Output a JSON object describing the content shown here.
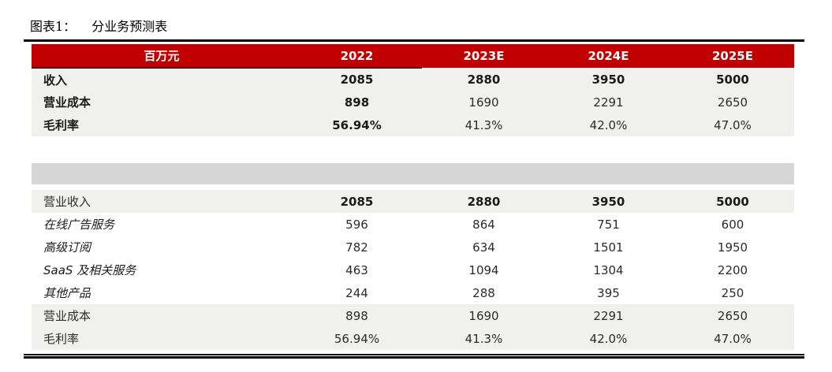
{
  "title": {
    "label": "图表1：",
    "name": "分业务预测表"
  },
  "table": {
    "unit_header": "百万元",
    "year_headers": [
      "2022",
      "2023E",
      "2024E",
      "2025E"
    ],
    "rows": [
      {
        "label": "收入",
        "values": [
          "2085",
          "2880",
          "3950",
          "5000"
        ],
        "label_style": "bold",
        "value_styles": [
          "bold",
          "bold",
          "bold",
          "bold"
        ],
        "bg": "light"
      },
      {
        "label": "营业成本",
        "values": [
          "898",
          "1690",
          "2291",
          "2650"
        ],
        "label_style": "bold",
        "value_styles": [
          "bold",
          "reg",
          "reg",
          "reg"
        ],
        "bg": "light"
      },
      {
        "label": "毛利率",
        "values": [
          "56.94%",
          "41.3%",
          "42.0%",
          "47.0%"
        ],
        "label_style": "bold",
        "value_styles": [
          "bold",
          "reg",
          "reg",
          "reg"
        ],
        "bg": "light"
      },
      {
        "type": "gap"
      },
      {
        "type": "band"
      },
      {
        "type": "gap-small"
      },
      {
        "label": "营业收入",
        "values": [
          "2085",
          "2880",
          "3950",
          "5000"
        ],
        "label_style": "reg",
        "value_styles": [
          "bold",
          "bold",
          "bold",
          "bold"
        ],
        "bg": "light"
      },
      {
        "label": "在线广告服务",
        "values": [
          "596",
          "864",
          "751",
          "600"
        ],
        "label_style": "italic",
        "value_styles": [
          "reg",
          "reg",
          "reg",
          "reg"
        ],
        "bg": "white"
      },
      {
        "label": "高级订阅",
        "values": [
          "782",
          "634",
          "1501",
          "1950"
        ],
        "label_style": "italic",
        "value_styles": [
          "reg",
          "reg",
          "reg",
          "reg"
        ],
        "bg": "white"
      },
      {
        "label": "SaaS 及相关服务",
        "values": [
          "463",
          "1094",
          "1304",
          "2200"
        ],
        "label_style": "italic",
        "value_styles": [
          "reg",
          "reg",
          "reg",
          "reg"
        ],
        "bg": "white"
      },
      {
        "label": "其他产品",
        "values": [
          "244",
          "288",
          "395",
          "250"
        ],
        "label_style": "italic",
        "value_styles": [
          "reg",
          "reg",
          "reg",
          "reg"
        ],
        "bg": "white"
      },
      {
        "label": "营业成本",
        "values": [
          "898",
          "1690",
          "2291",
          "2650"
        ],
        "label_style": "reg",
        "value_styles": [
          "reg",
          "reg",
          "reg",
          "reg"
        ],
        "bg": "light"
      },
      {
        "label": "毛利率",
        "values": [
          "56.94%",
          "41.3%",
          "42.0%",
          "47.0%"
        ],
        "label_style": "reg",
        "value_styles": [
          "reg",
          "reg",
          "reg",
          "reg"
        ],
        "bg": "light"
      }
    ]
  },
  "colors": {
    "header_bg": "#C00000",
    "header_text": "#FFFFFF",
    "row_light": "#F0F0EE",
    "separator_band": "#D6D6D6",
    "rule": "#000000"
  },
  "chart_data": {
    "type": "table",
    "title": "图表1： 分业务预测表",
    "unit": "百万元",
    "columns": [
      "百万元",
      "2022",
      "2023E",
      "2024E",
      "2025E"
    ],
    "rows": [
      [
        "收入",
        2085,
        2880,
        3950,
        5000
      ],
      [
        "营业成本",
        898,
        1690,
        2291,
        2650
      ],
      [
        "毛利率",
        "56.94%",
        "41.3%",
        "42.0%",
        "47.0%"
      ],
      [
        "营业收入",
        2085,
        2880,
        3950,
        5000
      ],
      [
        "在线广告服务",
        596,
        864,
        751,
        600
      ],
      [
        "高级订阅",
        782,
        634,
        1501,
        1950
      ],
      [
        "SaaS 及相关服务",
        463,
        1094,
        1304,
        2200
      ],
      [
        "其他产品",
        244,
        288,
        395,
        250
      ],
      [
        "营业成本",
        898,
        1690,
        2291,
        2650
      ],
      [
        "毛利率",
        "56.94%",
        "41.3%",
        "42.0%",
        "47.0%"
      ]
    ]
  }
}
